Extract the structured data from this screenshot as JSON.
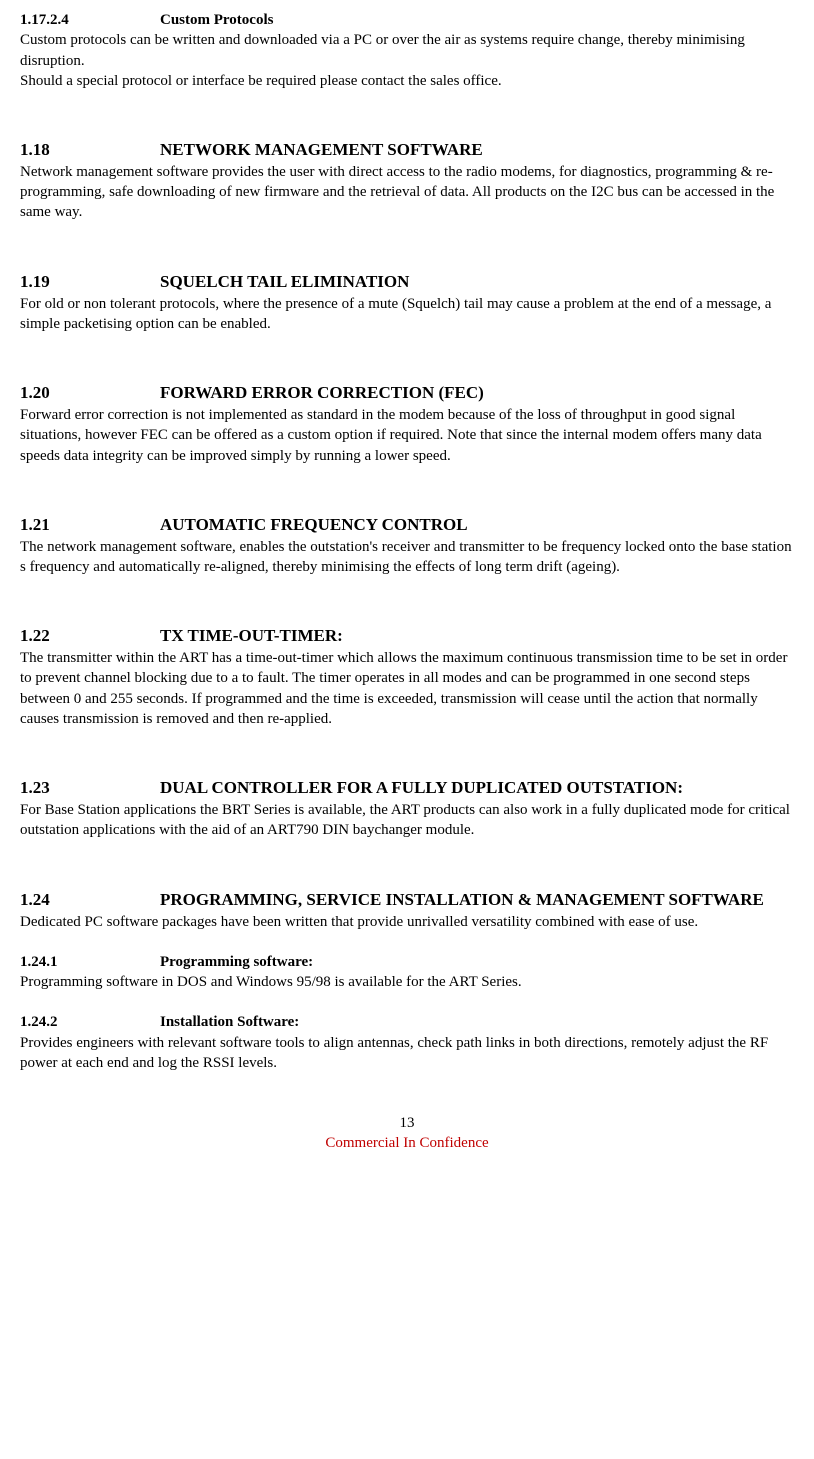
{
  "s1_17_2_4": {
    "num": "1.17.2.4",
    "title": "Custom Protocols",
    "body1": "Custom protocols can be written and downloaded via a PC or over the air as systems require change, thereby minimising disruption.",
    "body2": "Should a special protocol or interface be required please contact the sales office."
  },
  "s1_18": {
    "num": "1.18",
    "title": "NETWORK MANAGEMENT SOFTWARE",
    "body": "Network management software provides the user with direct access to the radio modems, for diagnostics, programming & re-programming, safe downloading of new firmware and the retrieval of data. All products on the I2C bus can be accessed in the same way."
  },
  "s1_19": {
    "num": "1.19",
    "title": "SQUELCH TAIL  ELIMINATION",
    "body": "For old or non tolerant protocols, where the presence of a mute (Squelch) tail may cause a problem at the end of a message,  a simple packetising option can be enabled."
  },
  "s1_20": {
    "num": "1.20",
    "title": "FORWARD ERROR CORRECTION (FEC)",
    "body": "Forward error correction is not implemented as standard in the modem because of the loss of throughput in good signal situations, however FEC can be offered as a custom option if required. Note that since the internal modem offers many data speeds data integrity can be improved simply by running a lower speed."
  },
  "s1_21": {
    "num": "1.21",
    "title": "AUTOMATIC FREQUENCY CONTROL",
    "body": "The network management software, enables the outstation's receiver and transmitter to be frequency  locked onto the base station s frequency and automatically re-aligned, thereby minimising the effects of long term drift (ageing)."
  },
  "s1_22": {
    "num": "1.22",
    "title": "TX TIME-OUT-TIMER:",
    "body": "The transmitter within the ART has a time-out-timer which allows the maximum continuous transmission time to be set in order to prevent channel blocking due to a to fault.   The timer operates in all modes and can be programmed in one second steps between 0 and 255 seconds.   If programmed and the time is exceeded, transmission will cease until the action that normally causes transmission is removed and then re-applied."
  },
  "s1_23": {
    "num": "1.23",
    "title": "DUAL CONTROLLER FOR A FULLY DUPLICATED OUTSTATION:",
    "body": "For Base Station applications the  BRT Series is available, the ART products can also work in a fully duplicated mode for critical outstation applications with the aid of an ART790 DIN baychanger module."
  },
  "s1_24": {
    "num": "1.24",
    "title": "PROGRAMMING, SERVICE  INSTALLATION & MANAGEMENT SOFTWARE",
    "body": "Dedicated PC software packages have been written that provide unrivalled versatility combined with ease of use."
  },
  "s1_24_1": {
    "num": "1.24.1",
    "title": "Programming software:",
    "body": "Programming software in DOS and Windows 95/98 is available for the ART Series."
  },
  "s1_24_2": {
    "num": "1.24.2",
    "title": "Installation Software:",
    "body": "Provides engineers with relevant software tools to align antennas, check path links in both directions, remotely adjust the RF power at each end and log the RSSI levels."
  },
  "footer": {
    "page": "13",
    "confidential": "Commercial In Confidence"
  }
}
